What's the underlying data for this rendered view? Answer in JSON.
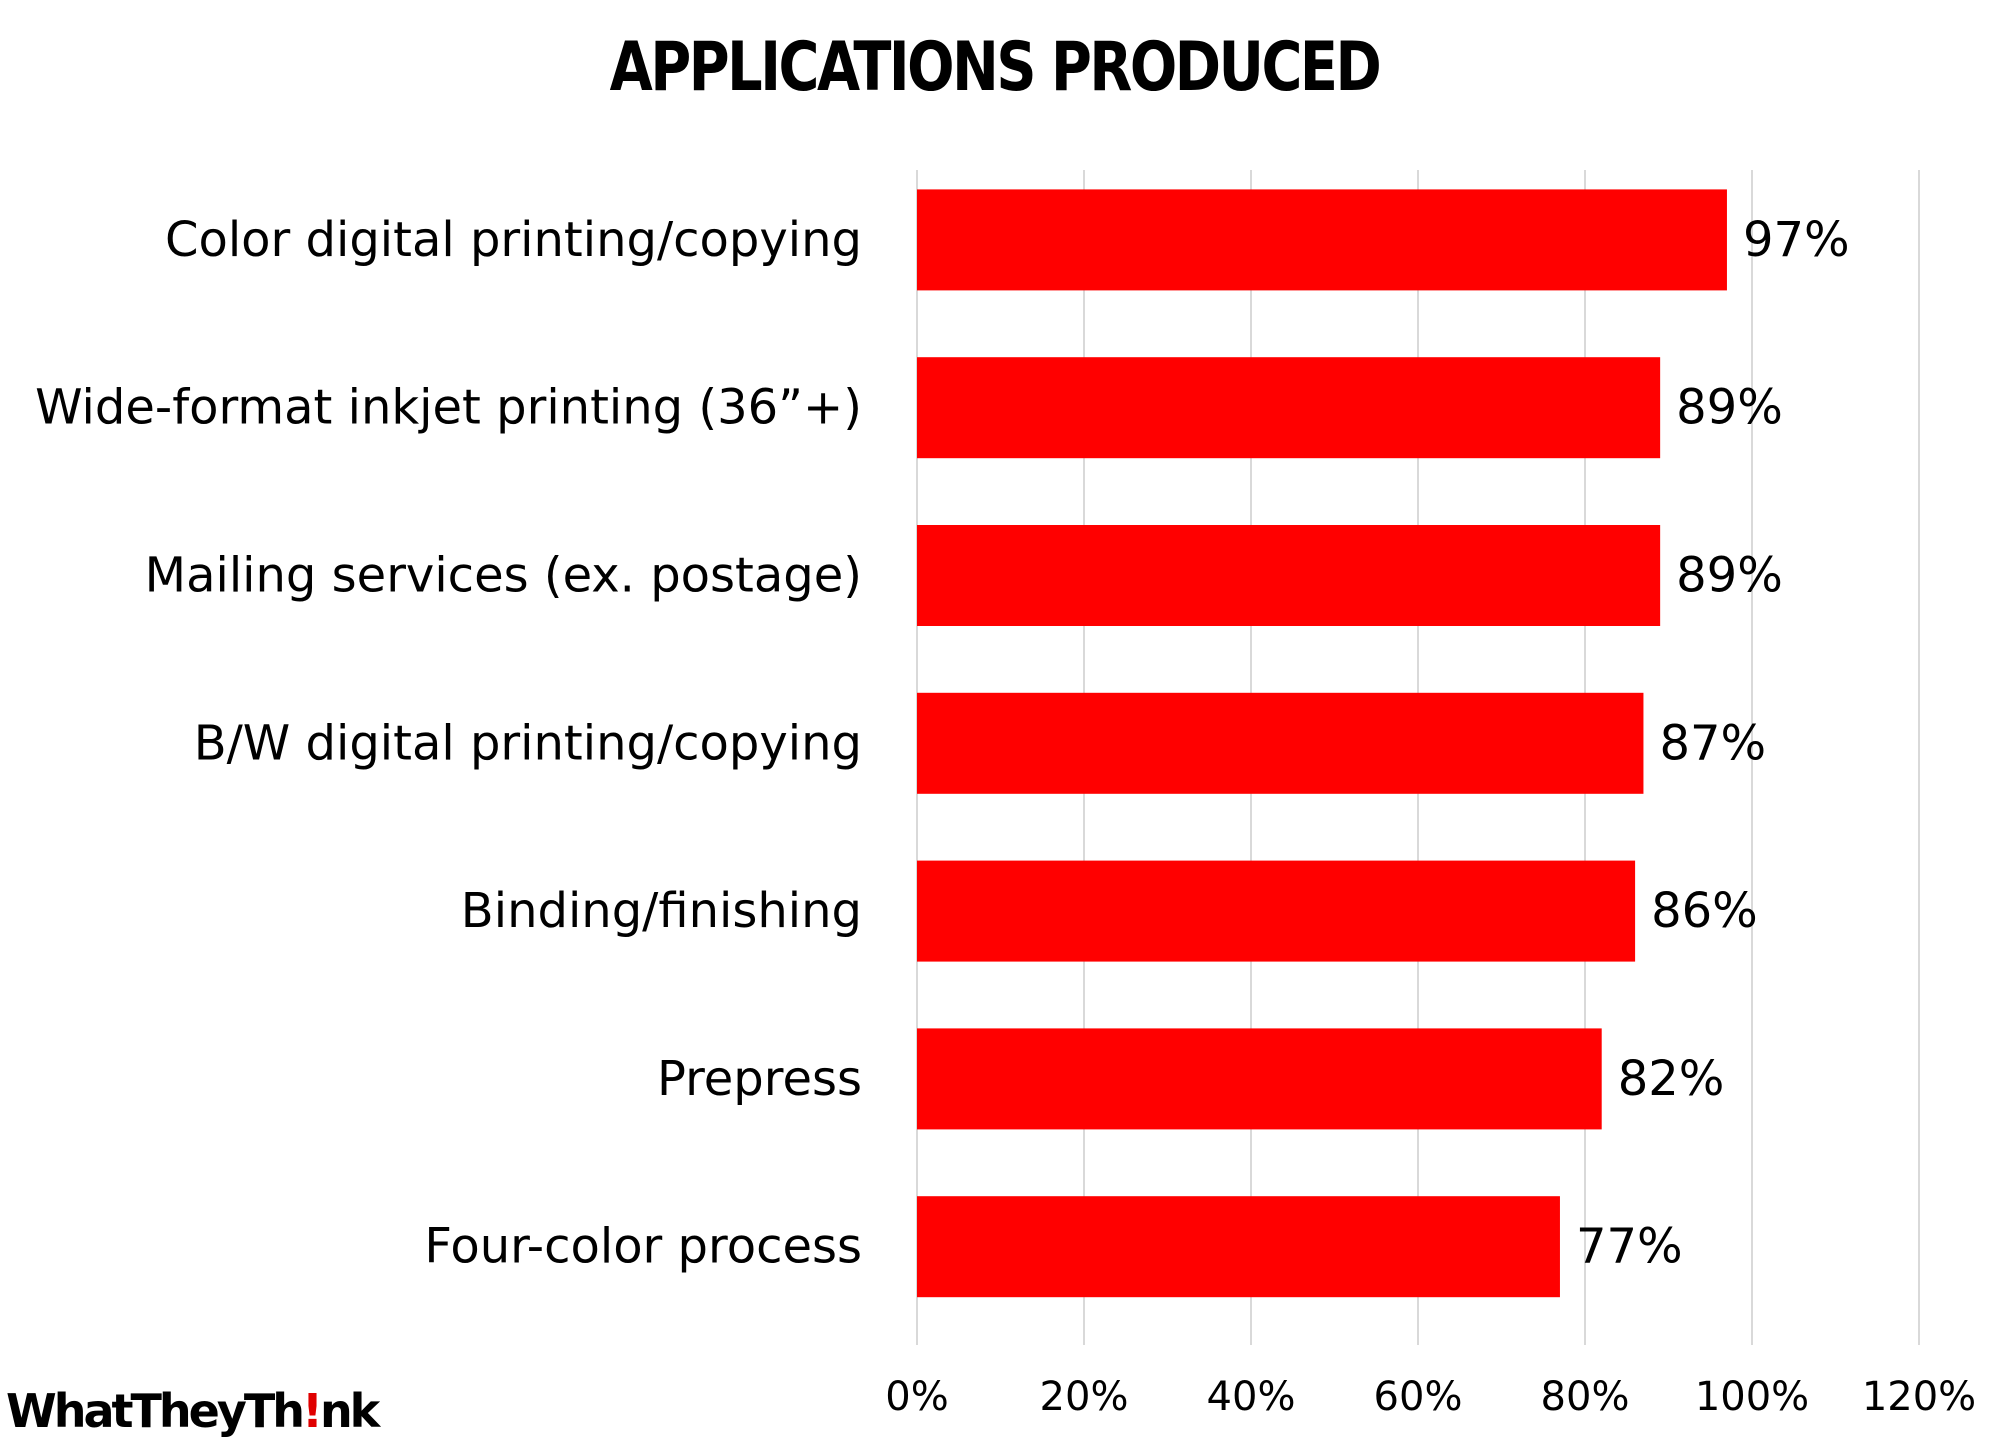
{
  "chart_data": {
    "type": "bar",
    "orientation": "horizontal",
    "title": "APPLICATIONS PRODUCED",
    "categories": [
      "Color digital printing/copying",
      "Wide-format inkjet printing (36”+)",
      "Mailing services (ex. postage)",
      "B/W digital printing/copying",
      "Binding/finishing",
      "Prepress",
      "Four-color process"
    ],
    "values": [
      97,
      89,
      89,
      87,
      86,
      82,
      77
    ],
    "data_labels": [
      "97%",
      "89%",
      "89%",
      "87%",
      "86%",
      "82%",
      "77%"
    ],
    "x_ticks": [
      "0%",
      "20%",
      "40%",
      "60%",
      "80%",
      "100%",
      "120%"
    ],
    "xlim": [
      0,
      120
    ],
    "grid": true,
    "bar_color": "#ff0000"
  },
  "branding": {
    "logo_text_before": "WhatTheyTh",
    "logo_mark": "!",
    "logo_text_after": "nk",
    "logo_mark_color": "#e00000"
  }
}
